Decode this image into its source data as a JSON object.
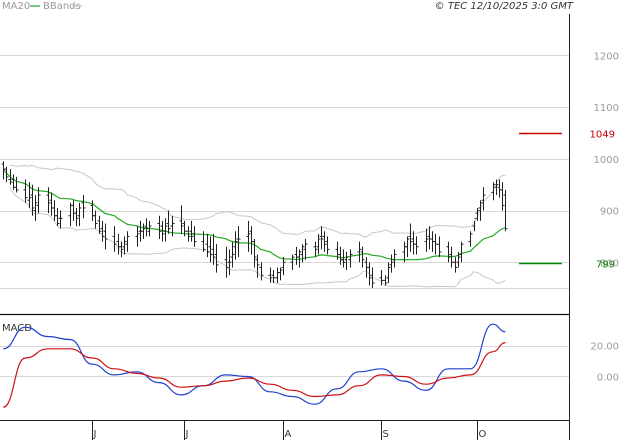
{
  "legend": {
    "ma20_label": "MA20",
    "bbands_label": "BBands",
    "ma20_color": "#22aa22",
    "bbands_color": "#c0c0c0"
  },
  "source_label": "© TEC 12/10/2025 3:0 GMT",
  "macd_label": "MACD",
  "colors": {
    "price_bar": "#222222",
    "grid": "#d8d8d8",
    "ma20": "#22aa22",
    "bbands": "#c8c8c8",
    "marker_1049": "#cc0000",
    "marker_799": "#008800",
    "macd_line": "#1f3fcc",
    "signal_line": "#cc1111"
  },
  "chart_data": [
    {
      "type": "ohlc",
      "title": "",
      "y_ticks": [
        800,
        900,
        1000,
        1100,
        1200
      ],
      "ylim": [
        700,
        1280
      ],
      "x_ticks": [
        "J",
        "J",
        "A",
        "S",
        "O"
      ],
      "x_tick_dates": [
        "2025-06-02",
        "2025-07-01",
        "2025-08-01",
        "2025-09-01",
        "2025-10-01"
      ],
      "xlim": [
        "2025-05-04",
        "2025-10-30"
      ],
      "grid": true,
      "markers": [
        {
          "label": "1049",
          "value": 1049,
          "color": "#cc0000"
        },
        {
          "label": "799",
          "value": 799,
          "color": "#008800"
        }
      ],
      "x": [
        "2025-05-05",
        "2025-05-06",
        "2025-05-07",
        "2025-05-08",
        "2025-05-09",
        "2025-05-12",
        "2025-05-13",
        "2025-05-14",
        "2025-05-15",
        "2025-05-16",
        "2025-05-19",
        "2025-05-20",
        "2025-05-21",
        "2025-05-22",
        "2025-05-23",
        "2025-05-26",
        "2025-05-27",
        "2025-05-28",
        "2025-05-29",
        "2025-05-30",
        "2025-06-02",
        "2025-06-03",
        "2025-06-04",
        "2025-06-05",
        "2025-06-06",
        "2025-06-09",
        "2025-06-10",
        "2025-06-11",
        "2025-06-12",
        "2025-06-13",
        "2025-06-16",
        "2025-06-17",
        "2025-06-18",
        "2025-06-19",
        "2025-06-20",
        "2025-06-23",
        "2025-06-24",
        "2025-06-25",
        "2025-06-26",
        "2025-06-27",
        "2025-06-30",
        "2025-07-01",
        "2025-07-02",
        "2025-07-03",
        "2025-07-04",
        "2025-07-07",
        "2025-07-08",
        "2025-07-09",
        "2025-07-10",
        "2025-07-11",
        "2025-07-14",
        "2025-07-15",
        "2025-07-16",
        "2025-07-17",
        "2025-07-18",
        "2025-07-21",
        "2025-07-22",
        "2025-07-23",
        "2025-07-24",
        "2025-07-25",
        "2025-07-28",
        "2025-07-29",
        "2025-07-30",
        "2025-07-31",
        "2025-08-01",
        "2025-08-04",
        "2025-08-05",
        "2025-08-06",
        "2025-08-07",
        "2025-08-08",
        "2025-08-11",
        "2025-08-12",
        "2025-08-13",
        "2025-08-14",
        "2025-08-15",
        "2025-08-18",
        "2025-08-19",
        "2025-08-20",
        "2025-08-21",
        "2025-08-22",
        "2025-08-25",
        "2025-08-26",
        "2025-08-27",
        "2025-08-28",
        "2025-08-29",
        "2025-09-01",
        "2025-09-02",
        "2025-09-03",
        "2025-09-04",
        "2025-09-05",
        "2025-09-08",
        "2025-09-09",
        "2025-09-10",
        "2025-09-11",
        "2025-09-12",
        "2025-09-15",
        "2025-09-16",
        "2025-09-17",
        "2025-09-18",
        "2025-09-19",
        "2025-09-22",
        "2025-09-23",
        "2025-09-24",
        "2025-09-25",
        "2025-09-26",
        "2025-09-29",
        "2025-09-30",
        "2025-10-01",
        "2025-10-02",
        "2025-10-03",
        "2025-10-06",
        "2025-10-07",
        "2025-10-08",
        "2025-10-09",
        "2025-10-10"
      ],
      "high": [
        995,
        985,
        980,
        970,
        965,
        960,
        955,
        950,
        930,
        945,
        945,
        935,
        920,
        905,
        900,
        915,
        920,
        905,
        915,
        930,
        920,
        900,
        890,
        880,
        875,
        870,
        855,
        840,
        850,
        860,
        870,
        880,
        875,
        885,
        880,
        890,
        880,
        885,
        900,
        890,
        910,
        880,
        870,
        880,
        870,
        860,
        855,
        850,
        855,
        835,
        830,
        825,
        840,
        860,
        870,
        880,
        870,
        845,
        815,
        800,
        790,
        785,
        790,
        790,
        810,
        815,
        830,
        825,
        835,
        845,
        840,
        855,
        870,
        860,
        850,
        840,
        830,
        825,
        820,
        825,
        840,
        830,
        810,
        800,
        790,
        785,
        775,
        800,
        815,
        825,
        840,
        850,
        875,
        860,
        850,
        865,
        870,
        860,
        855,
        850,
        840,
        830,
        810,
        820,
        840,
        860,
        880,
        905,
        920,
        945,
        955,
        960,
        960,
        955,
        940
      ],
      "low": [
        960,
        955,
        950,
        940,
        935,
        915,
        905,
        890,
        880,
        895,
        895,
        890,
        880,
        870,
        865,
        870,
        880,
        870,
        870,
        885,
        880,
        865,
        855,
        840,
        825,
        820,
        815,
        810,
        815,
        820,
        830,
        840,
        845,
        850,
        850,
        845,
        840,
        840,
        855,
        850,
        855,
        850,
        840,
        840,
        830,
        820,
        810,
        800,
        795,
        780,
        770,
        775,
        790,
        805,
        810,
        820,
        815,
        790,
        770,
        765,
        760,
        760,
        760,
        765,
        775,
        785,
        795,
        790,
        800,
        805,
        810,
        815,
        825,
        820,
        815,
        805,
        795,
        790,
        785,
        790,
        800,
        790,
        770,
        755,
        750,
        755,
        755,
        760,
        780,
        790,
        800,
        810,
        820,
        815,
        815,
        820,
        825,
        820,
        815,
        810,
        800,
        790,
        780,
        790,
        800,
        830,
        860,
        880,
        880,
        900,
        920,
        930,
        925,
        900,
        860
      ],
      "open": [
        990,
        980,
        960,
        960,
        945,
        940,
        920,
        930,
        900,
        910,
        930,
        920,
        905,
        890,
        885,
        890,
        910,
        895,
        890,
        915,
        910,
        890,
        880,
        865,
        860,
        850,
        840,
        830,
        830,
        835,
        850,
        860,
        860,
        870,
        860,
        875,
        870,
        860,
        875,
        870,
        880,
        875,
        860,
        860,
        855,
        840,
        835,
        830,
        825,
        815,
        805,
        800,
        810,
        830,
        845,
        850,
        860,
        840,
        805,
        790,
        775,
        775,
        770,
        780,
        790,
        800,
        815,
        810,
        815,
        825,
        830,
        830,
        850,
        850,
        840,
        825,
        815,
        805,
        805,
        805,
        820,
        820,
        800,
        790,
        775,
        770,
        765,
        770,
        795,
        805,
        820,
        830,
        850,
        845,
        835,
        840,
        850,
        845,
        840,
        835,
        830,
        815,
        800,
        800,
        815,
        840,
        870,
        895,
        905,
        920,
        935,
        945,
        945,
        940,
        930
      ],
      "close": [
        980,
        965,
        955,
        945,
        940,
        925,
        925,
        905,
        915,
        930,
        915,
        905,
        890,
        875,
        885,
        910,
        895,
        885,
        905,
        905,
        890,
        875,
        860,
        850,
        845,
        835,
        830,
        825,
        840,
        850,
        855,
        860,
        865,
        865,
        870,
        860,
        855,
        870,
        865,
        875,
        870,
        860,
        850,
        850,
        840,
        825,
        820,
        815,
        810,
        795,
        790,
        800,
        815,
        840,
        845,
        855,
        840,
        810,
        795,
        775,
        770,
        770,
        780,
        785,
        800,
        810,
        810,
        820,
        830,
        835,
        825,
        845,
        845,
        835,
        825,
        815,
        805,
        800,
        810,
        815,
        825,
        805,
        790,
        770,
        760,
        765,
        760,
        790,
        800,
        815,
        830,
        845,
        840,
        835,
        830,
        845,
        845,
        840,
        835,
        820,
        810,
        800,
        790,
        810,
        835,
        855,
        885,
        900,
        915,
        930,
        950,
        950,
        940,
        910,
        865
      ]
    },
    {
      "type": "line",
      "title": "MACD",
      "y_ticks": [
        0,
        20
      ],
      "ylim": [
        -27,
        38
      ],
      "x": [
        "2025-05-05",
        "2025-05-12",
        "2025-05-19",
        "2025-05-26",
        "2025-06-02",
        "2025-06-09",
        "2025-06-16",
        "2025-06-23",
        "2025-06-30",
        "2025-07-07",
        "2025-07-14",
        "2025-07-21",
        "2025-07-28",
        "2025-08-04",
        "2025-08-11",
        "2025-08-18",
        "2025-08-25",
        "2025-09-01",
        "2025-09-08",
        "2025-09-15",
        "2025-09-22",
        "2025-09-29",
        "2025-10-06",
        "2025-10-10"
      ],
      "series": [
        {
          "name": "MACD",
          "values": [
            18,
            32,
            26,
            24,
            8,
            1,
            3,
            -4,
            -12,
            -6,
            1,
            0,
            -10,
            -13,
            -18,
            -8,
            3,
            5,
            -3,
            -9,
            5,
            5,
            34,
            29
          ]
        },
        {
          "name": "Signal",
          "values": [
            -20,
            12,
            18,
            18,
            12,
            5,
            2,
            -1,
            -7,
            -6,
            -3,
            -1,
            -5,
            -9,
            -13,
            -12,
            -6,
            1,
            0,
            -5,
            -1,
            1,
            16,
            22
          ]
        }
      ]
    }
  ]
}
